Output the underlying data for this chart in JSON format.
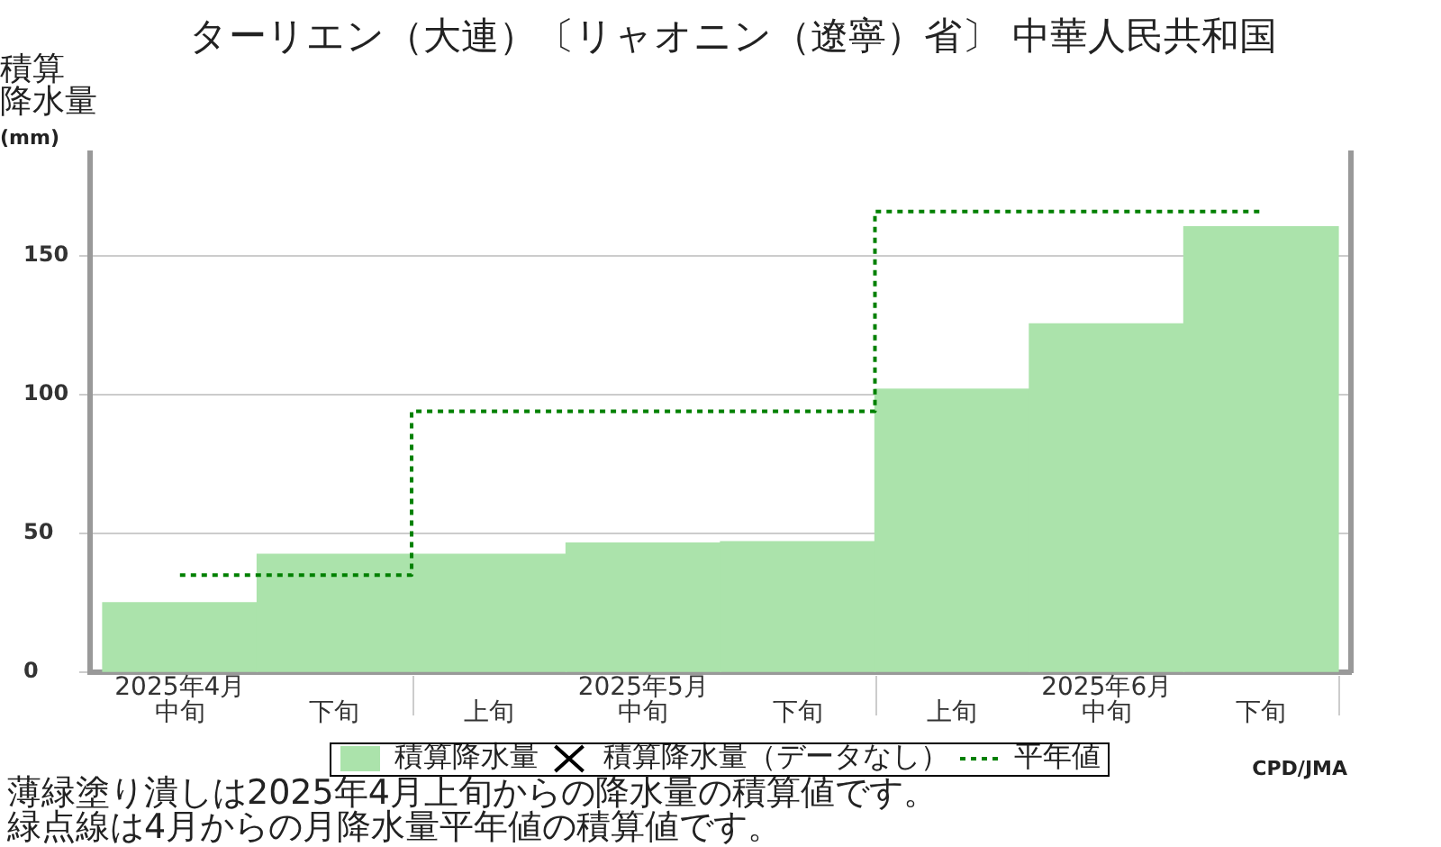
{
  "chart_data": {
    "type": "bar",
    "title": "ターリエン（大連）〔リャオニン（遼寧）省〕 中華人民共和国",
    "ylabel": "積算降水量(mm)",
    "categories": [
      "2025年4月中旬",
      "下旬",
      "上旬",
      "2025年5月中旬",
      "下旬",
      "上旬",
      "2025年6月中旬",
      "下旬"
    ],
    "series": [
      {
        "name": "積算降水量",
        "color": "#abe3ab",
        "values": [
          25,
          42.5,
          42.5,
          46.5,
          47,
          102,
          125.5,
          160.5
        ]
      },
      {
        "name": "積算降水量（データなし）",
        "type": "scatter",
        "marker": "cross",
        "color": "#000000",
        "values": [
          null,
          null,
          null,
          null,
          null,
          null,
          null,
          null
        ]
      },
      {
        "name": "平年値",
        "type": "step",
        "color": "#008000",
        "line_style": "dotted",
        "values": [
          35,
          35,
          94,
          94,
          94,
          166,
          166,
          166
        ]
      }
    ],
    "ylim": [
      0,
      187
    ],
    "yticks": [
      0,
      50,
      100,
      150
    ],
    "grid": "y",
    "legend": "bottom",
    "annotations": [
      "CPD/JMA",
      "薄緑塗り潰しは2025年4月上旬からの降水量の積算値です。",
      "緑点線は4月からの月降水量平年値の積算値です。"
    ]
  }
}
